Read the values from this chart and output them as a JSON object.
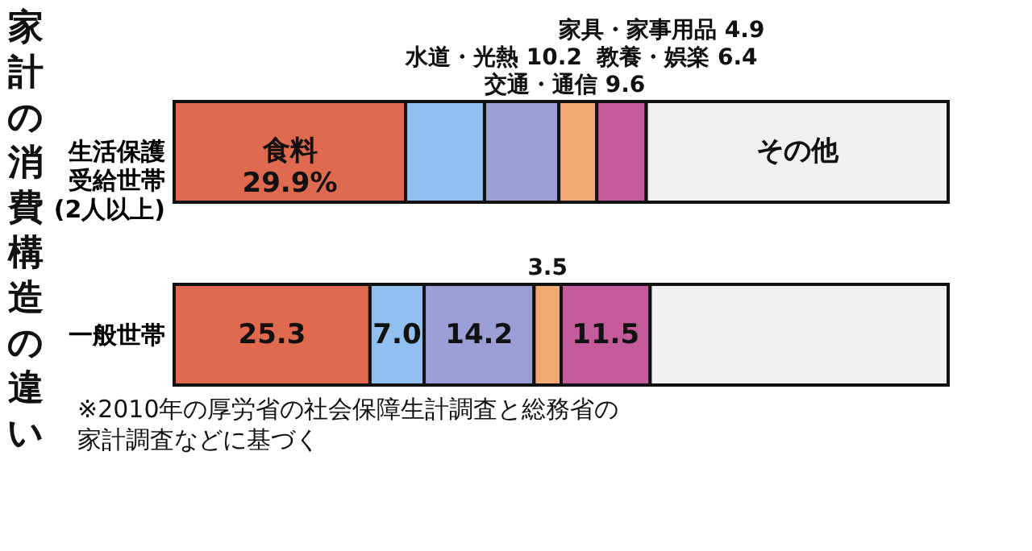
{
  "chart_data": {
    "type": "bar",
    "orientation": "horizontal",
    "stacked": true,
    "legend": false,
    "title": "家計の消費構造の違い",
    "categories": [
      "生活保護受給世帯(2人以上)",
      "一般世帯"
    ],
    "series": [
      {
        "name": "食料",
        "color": "#e06a50",
        "values": [
          29.9,
          25.3
        ],
        "value_labels": [
          "29.9%",
          "25.3"
        ]
      },
      {
        "name": "水道・光熱",
        "color": "#90bff0",
        "values": [
          10.2,
          7.0
        ],
        "value_labels": [
          "10.2",
          "7.0"
        ]
      },
      {
        "name": "交通・通信",
        "color": "#9aa0d6",
        "values": [
          9.6,
          14.2
        ],
        "value_labels": [
          "9.6",
          "14.2"
        ]
      },
      {
        "name": "家具・家事用品",
        "color": "#f2aa70",
        "values": [
          4.9,
          3.5
        ],
        "value_labels": [
          "4.9",
          "3.5"
        ]
      },
      {
        "name": "教養・娯楽",
        "color": "#c45c9c",
        "values": [
          6.4,
          11.5
        ],
        "value_labels": [
          "6.4",
          "11.5"
        ]
      },
      {
        "name": "その他",
        "color": "#f0f0f0",
        "values": [
          39.0,
          38.5
        ],
        "value_labels": [
          null,
          null
        ]
      }
    ],
    "annotations": [
      "※2010年の厚労省の社会保障生計調査と総務省の家計調査などに基づく"
    ]
  }
}
